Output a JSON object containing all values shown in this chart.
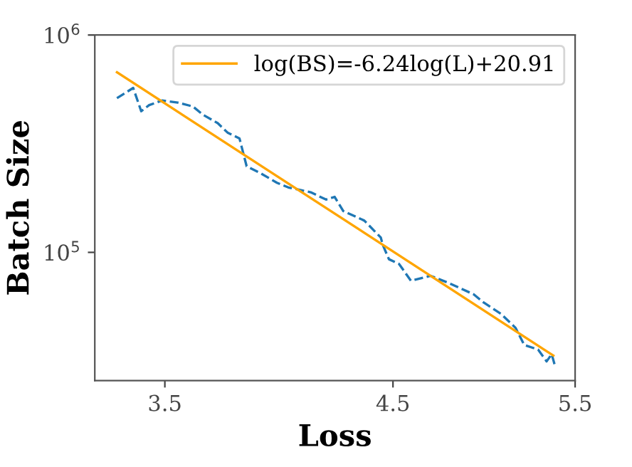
{
  "chart_data": {
    "type": "line",
    "xlabel": "Loss",
    "ylabel": "Batch Size",
    "log": "xy",
    "xlim": [
      3.24,
      5.5
    ],
    "xticks": [
      3.5,
      4.5,
      5.5
    ],
    "ylim": [
      25700,
      1000000
    ],
    "yticks": [
      {
        "value": 100000,
        "label": "10$^{5}$"
      },
      {
        "value": 1000000,
        "label": "10$^{6}$"
      }
    ],
    "grid": false,
    "legend": "top right",
    "series": [
      {
        "color": "#1f77b4",
        "line_style": "dashed",
        "x": [
          3.32,
          3.38,
          3.41,
          3.44,
          3.49,
          3.55,
          3.61,
          3.65,
          3.71,
          3.75,
          3.8,
          3.83,
          3.89,
          3.96,
          4.01,
          4.11,
          4.18,
          4.22,
          4.26,
          4.36,
          4.44,
          4.45,
          4.48,
          4.53,
          4.59,
          4.69,
          4.79,
          4.92,
          4.97,
          5.07,
          5.15,
          5.2,
          5.28,
          5.33,
          5.36,
          5.38
        ],
        "values": [
          512000,
          571000,
          446000,
          476000,
          500000,
          489000,
          469000,
          430000,
          393000,
          356000,
          334000,
          249000,
          231000,
          209000,
          199000,
          189000,
          175000,
          180000,
          155000,
          140000,
          117000,
          108000,
          93000,
          88500,
          74000,
          78000,
          72000,
          64000,
          59000,
          52000,
          45000,
          37500,
          35700,
          31500,
          34000,
          29900
        ]
      },
      {
        "name": "log(BS)=-6.24log(L)+20.91",
        "color": "#ffa500",
        "line_style": "solid",
        "x": [
          3.32,
          5.37
        ],
        "values": [
          674000,
          33500
        ]
      }
    ]
  }
}
